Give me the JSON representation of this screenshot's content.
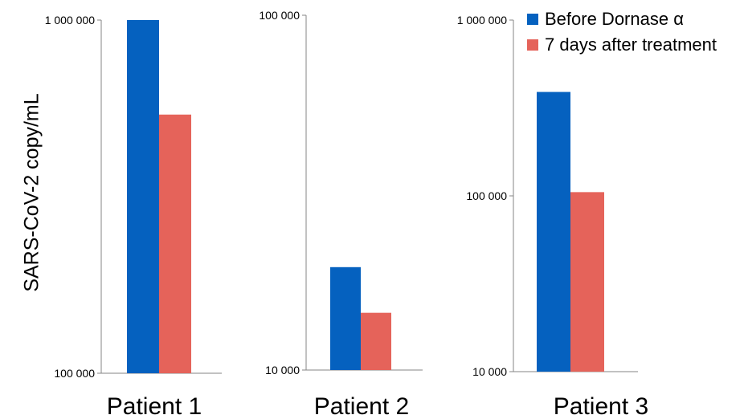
{
  "chart_data": {
    "type": "bar",
    "ylabel": "SARS-CoV-2 copy/mL",
    "yscale": "log",
    "grid": false,
    "legend_position": "top-right",
    "series_names": [
      "Before Dornase α",
      "7 days after treatment"
    ],
    "colors": [
      "#0561bf",
      "#e5635a"
    ],
    "panels": [
      {
        "category": "Patient 1",
        "ylim": [
          100000,
          1000000
        ],
        "tick_labels": [
          "100 000",
          "1 000 000"
        ],
        "values": [
          1000000,
          540000
        ]
      },
      {
        "category": "Patient 2",
        "ylim": [
          10000,
          100000
        ],
        "tick_labels": [
          "10 000",
          "100 000"
        ],
        "values": [
          19500,
          14500
        ]
      },
      {
        "category": "Patient 3",
        "ylim": [
          10000,
          1000000
        ],
        "tick_labels": [
          "10 000",
          "100 000",
          "1 000 000"
        ],
        "values": [
          390000,
          105000
        ]
      }
    ]
  }
}
